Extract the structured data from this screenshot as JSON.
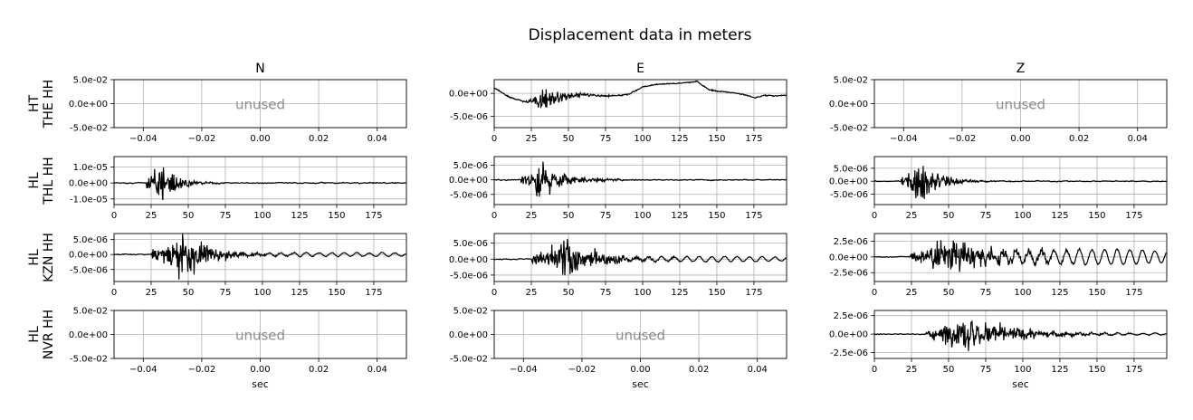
{
  "chart_data": {
    "type": "line",
    "title": "Displacement data in meters",
    "xlabel": "sec",
    "columns": [
      "N",
      "E",
      "Z"
    ],
    "rows": [
      {
        "network": "HT",
        "station": "THE HH"
      },
      {
        "network": "HL",
        "station": "THL HH"
      },
      {
        "network": "HL",
        "station": "KZN HH"
      },
      {
        "network": "HL",
        "station": "NVR HH"
      }
    ],
    "unused_label": "unused",
    "panels": [
      [
        {
          "used": false,
          "xlim": [
            -0.05,
            0.05
          ],
          "xticks": [
            "−0.04",
            "−0.02",
            "0.00",
            "0.02",
            "0.04"
          ],
          "xtick_values": [
            -0.04,
            -0.02,
            0,
            0.02,
            0.04
          ],
          "ylim": [
            -0.05,
            0.05
          ],
          "yticks": [
            "5.0e-02",
            "0.0e+00",
            "-5.0e-02"
          ],
          "ytick_values": [
            0.05,
            0,
            -0.05
          ]
        },
        {
          "used": true,
          "kind": "drift",
          "xlim": [
            0,
            197
          ],
          "ylim": [
            -7.5e-06,
            3e-06
          ],
          "yticks": [
            "0.0e+00",
            "-5.0e-06"
          ],
          "ytick_values": [
            0,
            -5e-06
          ],
          "onset": 20,
          "peak_t": 35,
          "amp": 2.5e-06,
          "trend": [
            [
              0,
              1.2e-06
            ],
            [
              10,
              -8e-07
            ],
            [
              20,
              -1.8e-06
            ],
            [
              28,
              -1.6e-06
            ],
            [
              40,
              -1.2e-06
            ],
            [
              50,
              -6e-07
            ],
            [
              60,
              -3e-07
            ],
            [
              75,
              -6e-07
            ],
            [
              90,
              -3e-07
            ],
            [
              100,
              1.4e-06
            ],
            [
              110,
              2e-06
            ],
            [
              125,
              2.2e-06
            ],
            [
              137,
              2.6e-06
            ],
            [
              140,
              1.8e-06
            ],
            [
              145,
              8e-07
            ],
            [
              150,
              5e-07
            ],
            [
              160,
              2e-07
            ],
            [
              170,
              -4e-07
            ],
            [
              176,
              -1e-06
            ],
            [
              182,
              -4e-07
            ],
            [
              190,
              -6e-07
            ],
            [
              197,
              -4e-07
            ]
          ]
        },
        {
          "used": false,
          "xlim": [
            -0.05,
            0.05
          ],
          "xticks": [
            "−0.04",
            "−0.02",
            "0.00",
            "0.02",
            "0.04"
          ],
          "xtick_values": [
            -0.04,
            -0.02,
            0,
            0.02,
            0.04
          ],
          "ylim": [
            -0.05,
            0.05
          ],
          "yticks": [
            "5.0e-02",
            "0.0e+00",
            "-5.0e-02"
          ],
          "ytick_values": [
            0.05,
            0,
            -0.05
          ]
        }
      ],
      [
        {
          "used": true,
          "kind": "quake",
          "xlim": [
            0,
            197
          ],
          "ylim": [
            -1.35e-05,
            1.65e-05
          ],
          "yticks": [
            "1.0e-05",
            "0.0e+00",
            "-1.0e-05"
          ],
          "ytick_values": [
            1e-05,
            0,
            -1e-05
          ],
          "onset": 22,
          "peak_t": 33,
          "amp": 1.6e-05,
          "decay": 10,
          "coda": 0.0
        },
        {
          "used": true,
          "kind": "quake",
          "xlim": [
            0,
            197
          ],
          "ylim": [
            -8.5e-06,
            8e-06
          ],
          "yticks": [
            "5.0e-06",
            "0.0e+00",
            "-5.0e-06"
          ],
          "ytick_values": [
            5e-06,
            0,
            -5e-06
          ],
          "onset": 18,
          "peak_t": 33,
          "amp": 7.5e-06,
          "decay": 16,
          "coda": 0.0
        },
        {
          "used": true,
          "kind": "quake",
          "xlim": [
            0,
            197
          ],
          "ylim": [
            -9e-06,
            9.5e-06
          ],
          "yticks": [
            "5.0e-06",
            "0.0e+00",
            "-5.0e-06"
          ],
          "ytick_values": [
            5e-06,
            0,
            -5e-06
          ],
          "onset": 18,
          "peak_t": 32,
          "amp": 8.5e-06,
          "decay": 14,
          "coda": 0.0
        }
      ],
      [
        {
          "used": true,
          "kind": "quake",
          "xlim": [
            0,
            197
          ],
          "ylim": [
            -9e-06,
            7e-06
          ],
          "yticks": [
            "5.0e-06",
            "0.0e+00",
            "-5.0e-06"
          ],
          "ytick_values": [
            5e-06,
            0,
            -5e-06
          ],
          "onset": 25,
          "peak_t": 48,
          "amp": 8e-06,
          "decay": 20,
          "coda": 0.08
        },
        {
          "used": true,
          "kind": "quake",
          "xlim": [
            0,
            197
          ],
          "ylim": [
            -7e-06,
            8e-06
          ],
          "yticks": [
            "5.0e-06",
            "0.0e+00",
            "-5.0e-06"
          ],
          "ytick_values": [
            5e-06,
            0,
            -5e-06
          ],
          "onset": 25,
          "peak_t": 50,
          "amp": 7e-06,
          "decay": 22,
          "coda": 0.12
        },
        {
          "used": true,
          "kind": "quake",
          "xlim": [
            0,
            197
          ],
          "ylim": [
            -3.9e-06,
            3.7e-06
          ],
          "yticks": [
            "2.5e-06",
            "0.0e+00",
            "-2.5e-06"
          ],
          "ytick_values": [
            2.5e-06,
            0,
            -2.5e-06
          ],
          "onset": 24,
          "peak_t": 50,
          "amp": 3.5e-06,
          "decay": 35,
          "coda": 0.35
        }
      ],
      [
        {
          "used": false,
          "xlim": [
            -0.05,
            0.05
          ],
          "xticks": [
            "−0.04",
            "−0.02",
            "0.00",
            "0.02",
            "0.04"
          ],
          "xtick_values": [
            -0.04,
            -0.02,
            0,
            0.02,
            0.04
          ],
          "ylim": [
            -0.05,
            0.05
          ],
          "yticks": [
            "5.0e-02",
            "0.0e+00",
            "-5.0e-02"
          ],
          "ytick_values": [
            0.05,
            0,
            -0.05
          ]
        },
        {
          "used": false,
          "xlim": [
            -0.05,
            0.05
          ],
          "xticks": [
            "−0.04",
            "−0.02",
            "0.00",
            "0.02",
            "0.04"
          ],
          "xtick_values": [
            -0.04,
            -0.02,
            0,
            0.02,
            0.04
          ],
          "ylim": [
            -0.05,
            0.05
          ],
          "yticks": [
            "5.0e-02",
            "0.0e+00",
            "-5.0e-02"
          ],
          "ytick_values": [
            0.05,
            0,
            -0.05
          ]
        },
        {
          "used": true,
          "kind": "quake",
          "xlim": [
            0,
            197
          ],
          "ylim": [
            -3.3e-06,
            3.2e-06
          ],
          "yticks": [
            "2.5e-06",
            "0.0e+00",
            "-2.5e-06"
          ],
          "ytick_values": [
            2.5e-06,
            0,
            -2.5e-06
          ],
          "onset": 35,
          "peak_t": 65,
          "amp": 2.8e-06,
          "decay": 30,
          "coda": 0.05
        }
      ]
    ],
    "time_ticks": [
      "0",
      "25",
      "50",
      "75",
      "100",
      "125",
      "150",
      "175"
    ],
    "time_tick_values": [
      0,
      25,
      50,
      75,
      100,
      125,
      150,
      175
    ],
    "grid": true,
    "line_color": "#000000",
    "grid_color": "#b0b0b0"
  }
}
